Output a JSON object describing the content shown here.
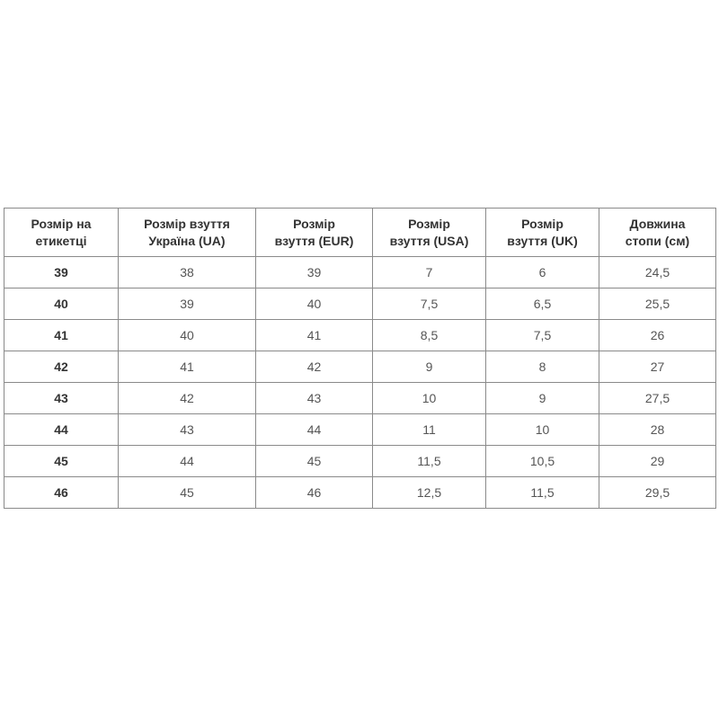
{
  "table": {
    "headers": [
      [
        "Розмір на",
        "етикетці"
      ],
      [
        "Розмір взуття",
        "Україна (UA)"
      ],
      [
        "Розмір",
        "взуття (EUR)"
      ],
      [
        "Розмір",
        "взуття (USA)"
      ],
      [
        "Розмір",
        "взуття (UK)"
      ],
      [
        "Довжина",
        "стопи (см)"
      ]
    ],
    "rows": [
      [
        "39",
        "38",
        "39",
        "7",
        "6",
        "24,5"
      ],
      [
        "40",
        "39",
        "40",
        "7,5",
        "6,5",
        "25,5"
      ],
      [
        "41",
        "40",
        "41",
        "8,5",
        "7,5",
        "26"
      ],
      [
        "42",
        "41",
        "42",
        "9",
        "8",
        "27"
      ],
      [
        "43",
        "42",
        "43",
        "10",
        "9",
        "27,5"
      ],
      [
        "44",
        "43",
        "44",
        "11",
        "10",
        "28"
      ],
      [
        "45",
        "44",
        "45",
        "11,5",
        "10,5",
        "29"
      ],
      [
        "46",
        "45",
        "46",
        "12,5",
        "11,5",
        "29,5"
      ]
    ]
  }
}
